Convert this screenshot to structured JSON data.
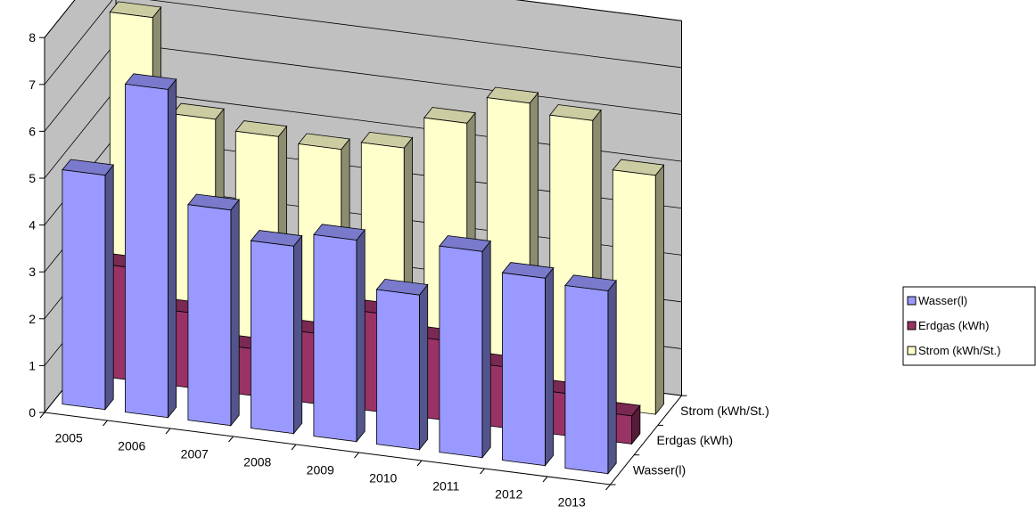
{
  "chart_data": {
    "type": "bar",
    "categories": [
      "2005",
      "2006",
      "2007",
      "2008",
      "2009",
      "2010",
      "2011",
      "2012",
      "2013"
    ],
    "series": [
      {
        "name": "Wasser(l)",
        "values": [
          5.0,
          7.0,
          4.6,
          4.0,
          4.3,
          3.3,
          4.4,
          4.0,
          3.9
        ]
      },
      {
        "name": "Erdgas (kWh)",
        "values": [
          2.4,
          1.6,
          1.0,
          1.5,
          2.1,
          1.7,
          1.3,
          0.9,
          0.6
        ]
      },
      {
        "name": "Strom (kWh/St.)",
        "values": [
          7.1,
          5.1,
          4.9,
          4.8,
          5.0,
          5.7,
          6.3,
          6.1,
          5.1
        ]
      }
    ],
    "ylim": [
      0,
      8
    ],
    "yticks": [
      "0",
      "1",
      "2",
      "3",
      "4",
      "5",
      "6",
      "7",
      "8"
    ],
    "xlabel": "",
    "ylabel": "",
    "title": "",
    "grid": true,
    "legend_position": "right",
    "colors": {
      "Wasser(l)": "#9999ff",
      "Erdgas (kWh)": "#993366",
      "Strom (kWh/St.)": "#ffffcc",
      "walls": "#c0c0c0"
    }
  }
}
